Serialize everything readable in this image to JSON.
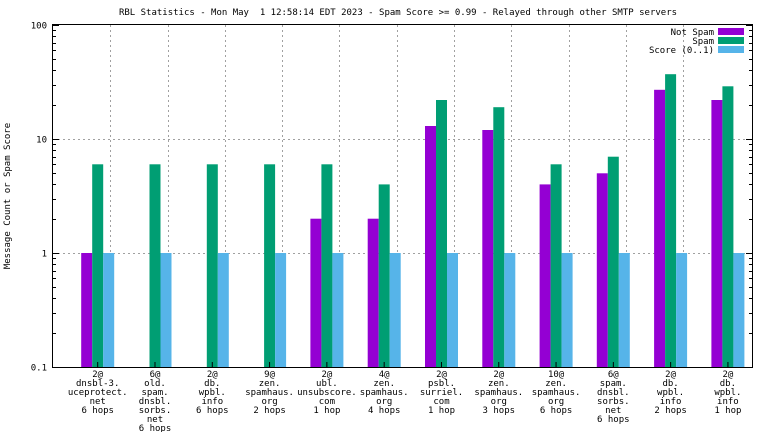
{
  "chart_data": {
    "type": "bar",
    "title": "RBL Statistics - Mon May  1 12:58:14 EDT 2023 - Spam Score >= 0.99 - Relayed through other SMTP servers",
    "ylabel": "Message Count or Spam Score",
    "xlabel": "",
    "yscale": "log",
    "ylim": [
      0.1,
      100
    ],
    "ytick_labels": [
      "0.1",
      "1",
      "10",
      "100"
    ],
    "ytick_values": [
      0.1,
      1,
      10,
      100
    ],
    "grid": true,
    "legend_position": "top-right",
    "categories": [
      [
        "2@",
        "dnsbl-3.",
        "uceprotect.",
        "net",
        "6 hops"
      ],
      [
        "6@",
        "old.",
        "spam.",
        "dnsbl.",
        "sorbs.",
        "net",
        "6 hops"
      ],
      [
        "2@",
        "db.",
        "wpbl.",
        "info",
        "6 hops"
      ],
      [
        "9@",
        "zen.",
        "spamhaus.",
        "org",
        "2 hops"
      ],
      [
        "2@",
        "ubl.",
        "unsubscore.",
        "com",
        "1 hop"
      ],
      [
        "4@",
        "zen.",
        "spamhaus.",
        "org",
        "4 hops"
      ],
      [
        "2@",
        "psbl.",
        "surriel.",
        "com",
        "1 hop"
      ],
      [
        "2@",
        "zen.",
        "spamhaus.",
        "org",
        "3 hops"
      ],
      [
        "10@",
        "zen.",
        "spamhaus.",
        "org",
        "6 hops"
      ],
      [
        "6@",
        "spam.",
        "dnsbl.",
        "sorbs.",
        "net",
        "6 hops"
      ],
      [
        "2@",
        "db.",
        "wpbl.",
        "info",
        "2 hops"
      ],
      [
        "2@",
        "db.",
        "wpbl.",
        "info",
        "1 hop"
      ]
    ],
    "series": [
      {
        "name": "Not Spam",
        "color": "#9400d3",
        "values": [
          1,
          0,
          0,
          0,
          2,
          2,
          13,
          12,
          4,
          5,
          27,
          22
        ]
      },
      {
        "name": "Spam",
        "color": "#009e73",
        "values": [
          6,
          6,
          6,
          6,
          6,
          4,
          22,
          19,
          6,
          7,
          37,
          29
        ]
      },
      {
        "name": "Score (0..1)",
        "color": "#56b4e9",
        "values": [
          1,
          1,
          1,
          1,
          1,
          1,
          1,
          1,
          1,
          1,
          1,
          1
        ]
      }
    ]
  }
}
